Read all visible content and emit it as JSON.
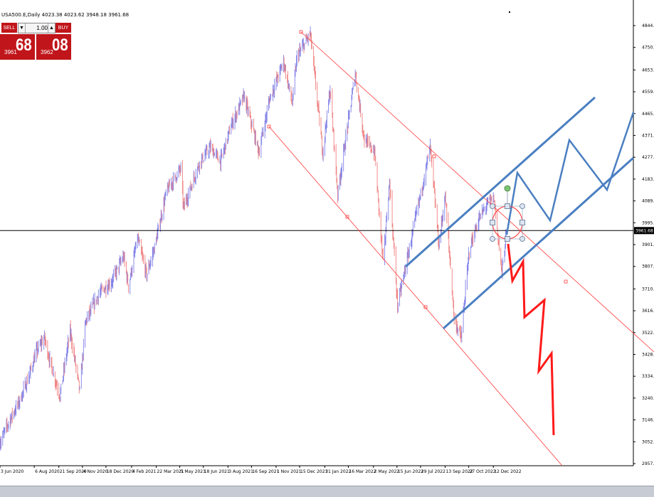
{
  "header": {
    "title": "USA500.E,Daily  4023.38 4023.62 3948.18 3961.68"
  },
  "trade_panel": {
    "sell_label": "SELL",
    "buy_label": "BUY",
    "lot": "1.00",
    "sell_price_small": "3961",
    "sell_price_big": "68",
    "buy_price_small": "3962",
    "buy_price_big": "08"
  },
  "colors": {
    "candle_up": "#8080e8",
    "candle_down": "#f08080",
    "channel_red": "#ff3b3b",
    "channel_blue": "#4a7fc1",
    "arrow_red": "#ff1a1a",
    "price_panel": "#c0151a"
  },
  "chart_data": {
    "type": "candlestick",
    "title": "USA500.E,Daily",
    "ohlc_last": {
      "open": 4023.38,
      "high": 4023.62,
      "low": 3948.18,
      "close": 3961.68
    },
    "current_price": 3961.68,
    "current_price_label": "3961.68",
    "y_range": [
      2957.95,
      4844.65
    ],
    "y_ticks": [
      {
        "label": "4844.65",
        "value": 4844.65
      },
      {
        "label": "4750.60",
        "value": 4750.6
      },
      {
        "label": "4653.70",
        "value": 4653.7
      },
      {
        "label": "4559.65",
        "value": 4559.65
      },
      {
        "label": "4465.60",
        "value": 4465.6
      },
      {
        "label": "4371.55",
        "value": 4371.55
      },
      {
        "label": "4277.50",
        "value": 4277.5
      },
      {
        "label": "4183.45",
        "value": 4183.45
      },
      {
        "label": "4089.40",
        "value": 4089.4
      },
      {
        "label": "3995.35",
        "value": 3995.35
      },
      {
        "label": "3901.30",
        "value": 3901.3
      },
      {
        "label": "3807.25",
        "value": 3807.25
      },
      {
        "label": "3710.35",
        "value": 3710.35
      },
      {
        "label": "3616.30",
        "value": 3616.3
      },
      {
        "label": "3522.25",
        "value": 3522.25
      },
      {
        "label": "3428.20",
        "value": 3428.2
      },
      {
        "label": "3334.15",
        "value": 3334.15
      },
      {
        "label": "3240.10",
        "value": 3240.1
      },
      {
        "label": "3146.05",
        "value": 3146.05
      },
      {
        "label": "3052.00",
        "value": 3052.0
      },
      {
        "label": "2957.95",
        "value": 2957.95
      }
    ],
    "x_ticks": [
      "3 Jun 2020",
      "6 Aug 2020",
      "21 Sep 2020",
      "4 Nov 2020",
      "18 Dec 2020",
      "4 Feb 2021",
      "22 Mar 2021",
      "5 May 2021",
      "18 Jun 2021",
      "3 Aug 2021",
      "16 Sep 2021",
      "1 Nov 2021",
      "15 Dec 2021",
      "31 Jan 2022",
      "16 Mar 2022",
      "2 May 2022",
      "15 Jun 2022",
      "29 Jul 2022",
      "13 Sep 2022",
      "27 Oct 2022",
      "12 Dec 2022"
    ],
    "x_range": [
      "2020-06-03",
      "2023-01-06"
    ],
    "price_path": [
      [
        "2020-06-03",
        3050
      ],
      [
        "2020-06-20",
        3140
      ],
      [
        "2020-07-10",
        3230
      ],
      [
        "2020-07-28",
        3340
      ],
      [
        "2020-08-10",
        3440
      ],
      [
        "2020-08-25",
        3500
      ],
      [
        "2020-09-04",
        3400
      ],
      [
        "2020-09-23",
        3250
      ],
      [
        "2020-10-12",
        3530
      ],
      [
        "2020-10-30",
        3270
      ],
      [
        "2020-11-10",
        3570
      ],
      [
        "2020-12-05",
        3690
      ],
      [
        "2020-12-28",
        3740
      ],
      [
        "2021-01-20",
        3850
      ],
      [
        "2021-01-29",
        3720
      ],
      [
        "2021-02-15",
        3930
      ],
      [
        "2021-03-04",
        3770
      ],
      [
        "2021-03-20",
        3900
      ],
      [
        "2021-04-10",
        4130
      ],
      [
        "2021-05-07",
        4230
      ],
      [
        "2021-05-12",
        4060
      ],
      [
        "2021-06-10",
        4250
      ],
      [
        "2021-07-01",
        4320
      ],
      [
        "2021-07-20",
        4260
      ],
      [
        "2021-08-10",
        4420
      ],
      [
        "2021-09-02",
        4540
      ],
      [
        "2021-09-30",
        4300
      ],
      [
        "2021-10-20",
        4530
      ],
      [
        "2021-11-15",
        4690
      ],
      [
        "2021-12-01",
        4510
      ],
      [
        "2021-12-10",
        4710
      ],
      [
        "2022-01-04",
        4810
      ],
      [
        "2022-01-27",
        4300
      ],
      [
        "2022-02-10",
        4570
      ],
      [
        "2022-02-24",
        4120
      ],
      [
        "2022-03-29",
        4640
      ],
      [
        "2022-04-15",
        4350
      ],
      [
        "2022-05-04",
        4300
      ],
      [
        "2022-05-20",
        3820
      ],
      [
        "2022-06-01",
        4170
      ],
      [
        "2022-06-16",
        3640
      ],
      [
        "2022-07-05",
        3850
      ],
      [
        "2022-08-16",
        4320
      ],
      [
        "2022-09-01",
        3900
      ],
      [
        "2022-09-13",
        4110
      ],
      [
        "2022-09-30",
        3580
      ],
      [
        "2022-10-13",
        3500
      ],
      [
        "2022-10-28",
        3880
      ],
      [
        "2022-11-15",
        4010
      ],
      [
        "2022-12-01",
        4080
      ],
      [
        "2022-12-13",
        4100
      ],
      [
        "2022-12-28",
        3780
      ],
      [
        "2023-01-06",
        3961.68
      ]
    ],
    "channels": {
      "red_upper": [
        [
          "2022-01-04",
          4845
        ],
        [
          "2023-01-06",
          3850
        ]
      ],
      "red_lower": [
        [
          "2021-11-01",
          4400
        ],
        [
          "2023-01-06",
          2960
        ]
      ]
    }
  },
  "footer": {}
}
